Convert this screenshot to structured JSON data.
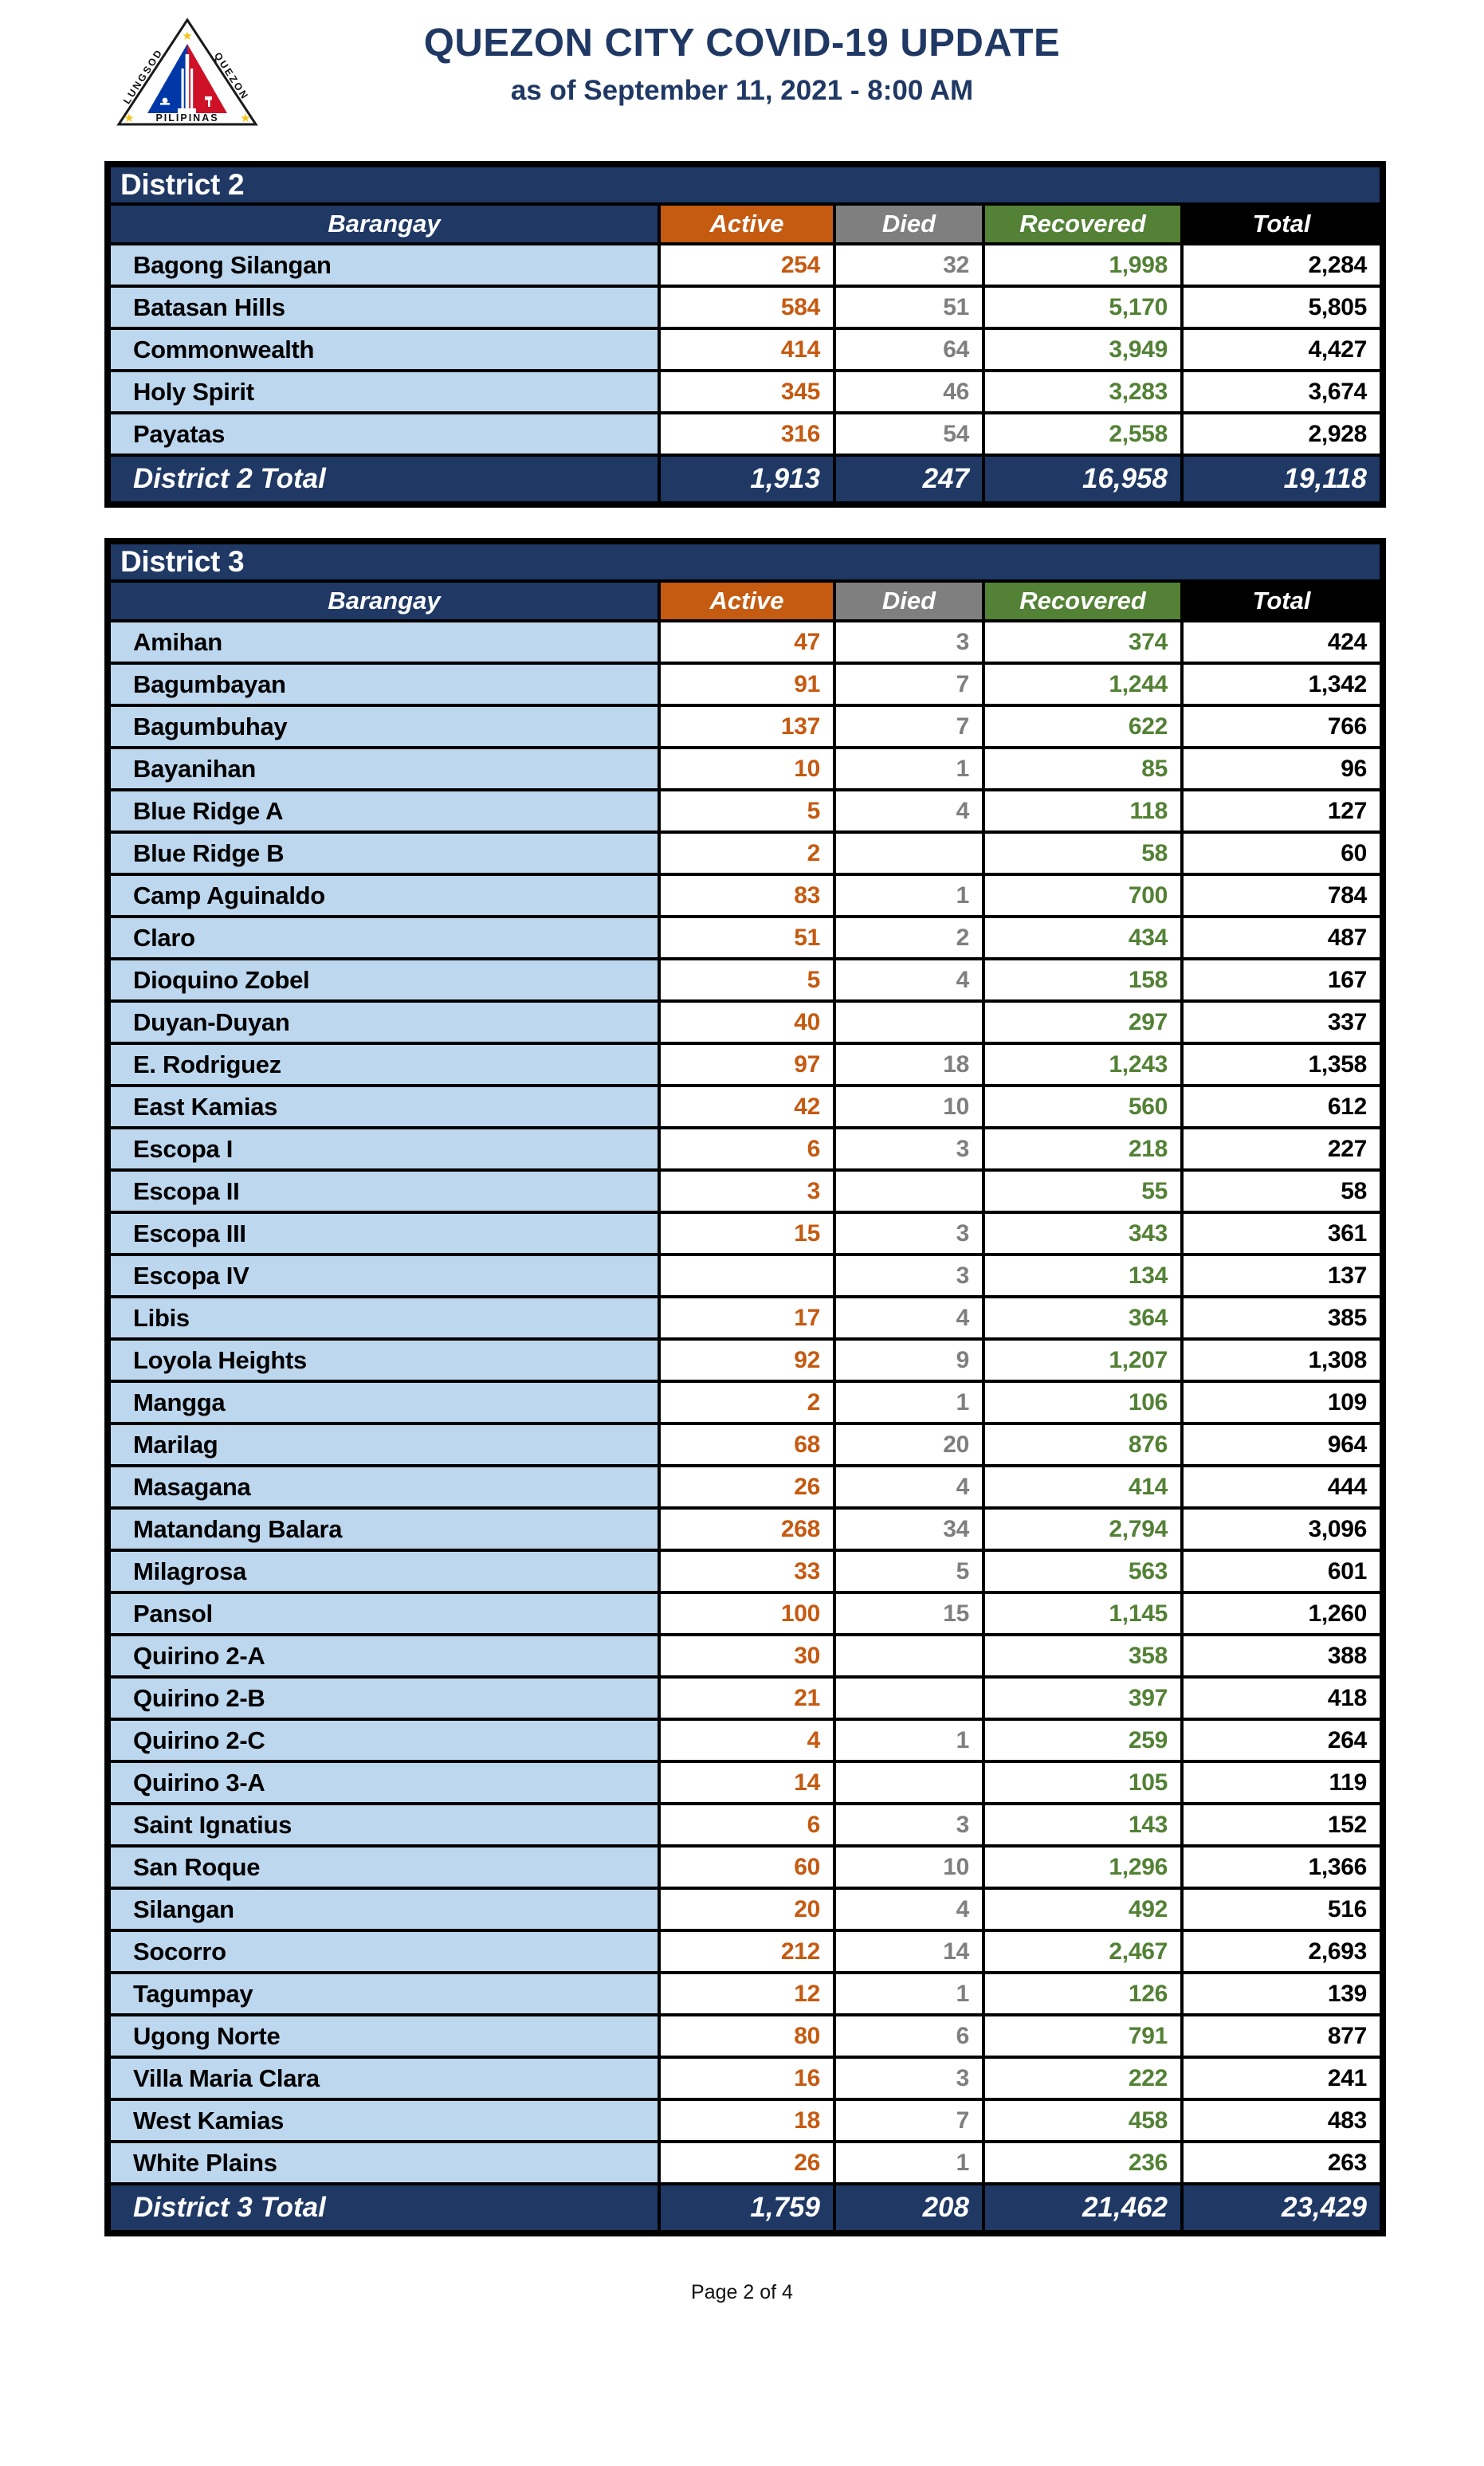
{
  "header": {
    "title": "QUEZON CITY COVID-19 UPDATE",
    "subtitle": "as of September 11, 2021 - 8:00 AM",
    "logo": {
      "left_text": "LUNGSOD",
      "right_text": "QUEZON",
      "bottom_text": "PILIPINAS"
    }
  },
  "theme": {
    "navy": "#1F3864",
    "light_blue": "#BDD7EE",
    "border": "#000000",
    "title_text": "#1F3864",
    "page_bg": "#FFFFFF",
    "logo_blue": "#0038A8",
    "logo_red": "#CE1126",
    "logo_gold": "#F5C518"
  },
  "columns": [
    {
      "key": "barangay",
      "label": "Barangay",
      "header_bg": "#1F3864",
      "value_color": "#000000"
    },
    {
      "key": "active",
      "label": "Active",
      "header_bg": "#C55A11",
      "value_color": "#C55A11"
    },
    {
      "key": "died",
      "label": "Died",
      "header_bg": "#7F7F7F",
      "value_color": "#7F7F7F"
    },
    {
      "key": "recovered",
      "label": "Recovered",
      "header_bg": "#538135",
      "value_color": "#538135"
    },
    {
      "key": "total",
      "label": "Total",
      "header_bg": "#000000",
      "value_color": "#000000"
    }
  ],
  "tables": [
    {
      "district": "District 2",
      "rows": [
        [
          "Bagong Silangan",
          "254",
          "32",
          "1,998",
          "2,284"
        ],
        [
          "Batasan Hills",
          "584",
          "51",
          "5,170",
          "5,805"
        ],
        [
          "Commonwealth",
          "414",
          "64",
          "3,949",
          "4,427"
        ],
        [
          "Holy Spirit",
          "345",
          "46",
          "3,283",
          "3,674"
        ],
        [
          "Payatas",
          "316",
          "54",
          "2,558",
          "2,928"
        ]
      ],
      "total": [
        "District 2 Total",
        "1,913",
        "247",
        "16,958",
        "19,118"
      ]
    },
    {
      "district": "District 3",
      "rows": [
        [
          "Amihan",
          "47",
          "3",
          "374",
          "424"
        ],
        [
          "Bagumbayan",
          "91",
          "7",
          "1,244",
          "1,342"
        ],
        [
          "Bagumbuhay",
          "137",
          "7",
          "622",
          "766"
        ],
        [
          "Bayanihan",
          "10",
          "1",
          "85",
          "96"
        ],
        [
          "Blue Ridge A",
          "5",
          "4",
          "118",
          "127"
        ],
        [
          "Blue Ridge B",
          "2",
          "",
          "58",
          "60"
        ],
        [
          "Camp Aguinaldo",
          "83",
          "1",
          "700",
          "784"
        ],
        [
          "Claro",
          "51",
          "2",
          "434",
          "487"
        ],
        [
          "Dioquino Zobel",
          "5",
          "4",
          "158",
          "167"
        ],
        [
          "Duyan-Duyan",
          "40",
          "",
          "297",
          "337"
        ],
        [
          "E. Rodriguez",
          "97",
          "18",
          "1,243",
          "1,358"
        ],
        [
          "East Kamias",
          "42",
          "10",
          "560",
          "612"
        ],
        [
          "Escopa I",
          "6",
          "3",
          "218",
          "227"
        ],
        [
          "Escopa II",
          "3",
          "",
          "55",
          "58"
        ],
        [
          "Escopa III",
          "15",
          "3",
          "343",
          "361"
        ],
        [
          "Escopa IV",
          "",
          "3",
          "134",
          "137"
        ],
        [
          "Libis",
          "17",
          "4",
          "364",
          "385"
        ],
        [
          "Loyola Heights",
          "92",
          "9",
          "1,207",
          "1,308"
        ],
        [
          "Mangga",
          "2",
          "1",
          "106",
          "109"
        ],
        [
          "Marilag",
          "68",
          "20",
          "876",
          "964"
        ],
        [
          "Masagana",
          "26",
          "4",
          "414",
          "444"
        ],
        [
          "Matandang Balara",
          "268",
          "34",
          "2,794",
          "3,096"
        ],
        [
          "Milagrosa",
          "33",
          "5",
          "563",
          "601"
        ],
        [
          "Pansol",
          "100",
          "15",
          "1,145",
          "1,260"
        ],
        [
          "Quirino 2-A",
          "30",
          "",
          "358",
          "388"
        ],
        [
          "Quirino 2-B",
          "21",
          "",
          "397",
          "418"
        ],
        [
          "Quirino 2-C",
          "4",
          "1",
          "259",
          "264"
        ],
        [
          "Quirino 3-A",
          "14",
          "",
          "105",
          "119"
        ],
        [
          "Saint Ignatius",
          "6",
          "3",
          "143",
          "152"
        ],
        [
          "San Roque",
          "60",
          "10",
          "1,296",
          "1,366"
        ],
        [
          "Silangan",
          "20",
          "4",
          "492",
          "516"
        ],
        [
          "Socorro",
          "212",
          "14",
          "2,467",
          "2,693"
        ],
        [
          "Tagumpay",
          "12",
          "1",
          "126",
          "139"
        ],
        [
          "Ugong Norte",
          "80",
          "6",
          "791",
          "877"
        ],
        [
          "Villa Maria Clara",
          "16",
          "3",
          "222",
          "241"
        ],
        [
          "West Kamias",
          "18",
          "7",
          "458",
          "483"
        ],
        [
          "White Plains",
          "26",
          "1",
          "236",
          "263"
        ]
      ],
      "total": [
        "District 3 Total",
        "1,759",
        "208",
        "21,462",
        "23,429"
      ]
    }
  ],
  "footer": {
    "page_label": "Page 2 of 4"
  }
}
